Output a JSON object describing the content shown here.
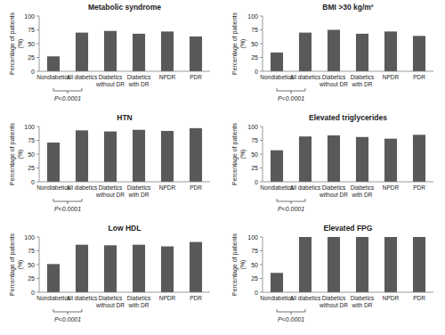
{
  "chart_data": [
    {
      "type": "bar",
      "title": "Metabolic syndrome",
      "y_label": "Percentage of patients (%)",
      "categories": [
        "Nondiabetics",
        "All diabetics",
        "Diabetics without DR",
        "Diabetics with DR",
        "NPDR",
        "PDR"
      ],
      "values": [
        27,
        70,
        73,
        68,
        72,
        63
      ],
      "color": "#595959",
      "ylim": [
        0,
        100
      ],
      "yticks": [
        0,
        25,
        50,
        75,
        100
      ],
      "grid": false,
      "annotation": "P<0.0001"
    },
    {
      "type": "bar",
      "title": "BMI >30 kg/m²",
      "y_label": "Percentage of patients (%)",
      "categories": [
        "Nondiabetics",
        "All diabetics",
        "Diabetics without DR",
        "Diabetics with DR",
        "NPDR",
        "PDR"
      ],
      "values": [
        34,
        70,
        75,
        68,
        72,
        64
      ],
      "color": "#595959",
      "ylim": [
        0,
        100
      ],
      "yticks": [
        0,
        25,
        50,
        75,
        100
      ],
      "grid": false,
      "annotation": "P<0.0001"
    },
    {
      "type": "bar",
      "title": "HTN",
      "y_label": "Percentage of patients (%)",
      "categories": [
        "Nondiabetics",
        "All diabetics",
        "Diabetics without DR",
        "Diabetics with DR",
        "NPDR",
        "PDR"
      ],
      "values": [
        71,
        93,
        91,
        94,
        92,
        97
      ],
      "color": "#595959",
      "ylim": [
        0,
        100
      ],
      "yticks": [
        0,
        25,
        50,
        75,
        100
      ],
      "grid": false,
      "annotation": "P<0.0001"
    },
    {
      "type": "bar",
      "title": "Elevated triglycerides",
      "y_label": "Percentage of patients (%)",
      "categories": [
        "Nondiabetics",
        "All diabetics",
        "Diabetics without DR",
        "Diabetics with DR",
        "NPDR",
        "PDR"
      ],
      "values": [
        57,
        82,
        84,
        81,
        78,
        85
      ],
      "color": "#595959",
      "ylim": [
        0,
        100
      ],
      "yticks": [
        0,
        25,
        50,
        75,
        100
      ],
      "grid": false,
      "annotation": "P<0.0001"
    },
    {
      "type": "bar",
      "title": "Low HDL",
      "y_label": "Percentage of patients (%)",
      "categories": [
        "Nondiabetics",
        "All diabetics",
        "Diabetics without DR",
        "Diabetics with DR",
        "NPDR",
        "PDR"
      ],
      "values": [
        51,
        86,
        85,
        86,
        83,
        91
      ],
      "color": "#595959",
      "ylim": [
        0,
        100
      ],
      "yticks": [
        0,
        25,
        50,
        75,
        100
      ],
      "grid": false,
      "annotation": "P<0.0001"
    },
    {
      "type": "bar",
      "title": "Elevated FPG",
      "y_label": "Percentage of patients (%)",
      "categories": [
        "Nondiabetics",
        "All diabetics",
        "Diabetics without DR",
        "Diabetics with DR",
        "NPDR",
        "PDR"
      ],
      "values": [
        35,
        100,
        100,
        100,
        100,
        100
      ],
      "color": "#595959",
      "ylim": [
        0,
        100
      ],
      "yticks": [
        0,
        25,
        50,
        75,
        100
      ],
      "grid": false,
      "annotation": "P<0.0001"
    }
  ]
}
